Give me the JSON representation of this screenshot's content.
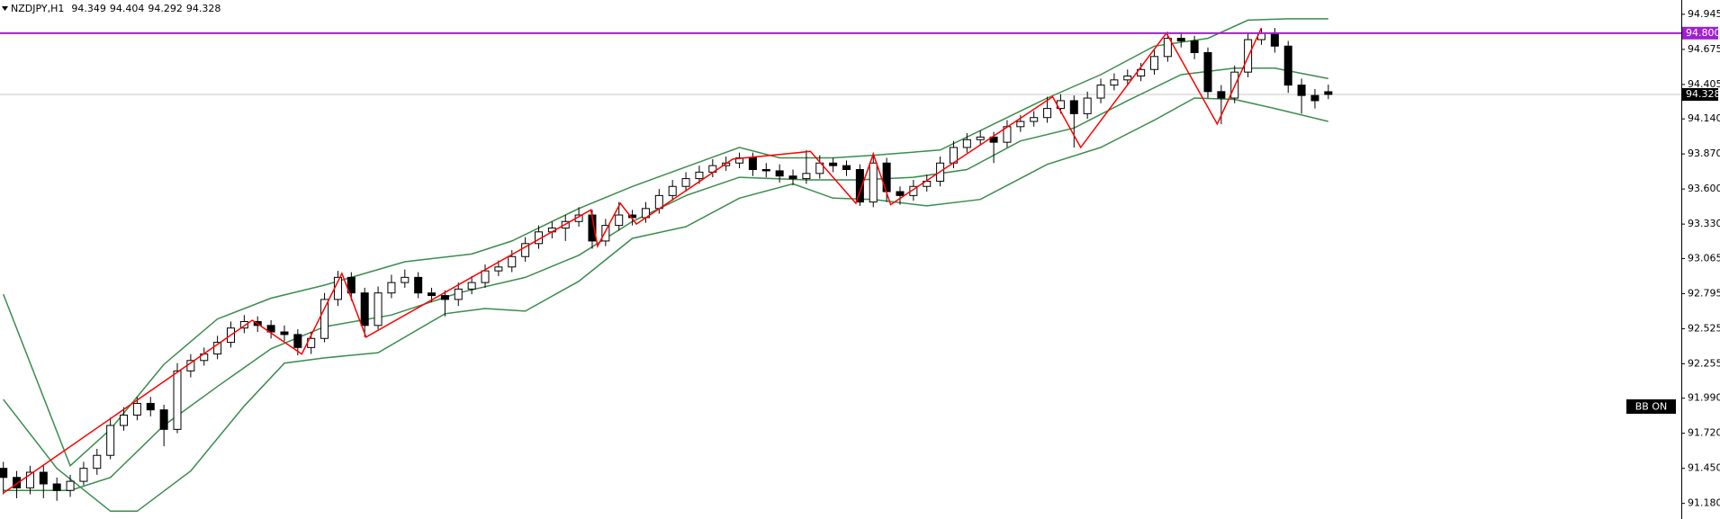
{
  "chart_data": {
    "type": "candlestick",
    "title": "NZDJPY,H1",
    "grid": false,
    "ylim": [
      91.06,
      95.055
    ],
    "yticks": [
      94.945,
      94.675,
      94.405,
      {
        "value": 94.14,
        "label": "94.140"
      },
      {
        "value": 93.87,
        "label": "93.870"
      },
      {
        "value": 93.6,
        "label": "93.600"
      },
      {
        "value": 93.33,
        "label": "93.330"
      },
      93.065,
      92.795,
      92.525,
      92.255,
      {
        "value": 91.99,
        "label": "91.990"
      },
      {
        "value": 91.72,
        "label": "91.720"
      },
      {
        "value": 91.45,
        "label": "91.450"
      },
      {
        "value": 91.18,
        "label": "91.180"
      }
    ],
    "series": [
      {
        "type": "candlestick",
        "up_color": "#ffffff",
        "down_color": "#000000",
        "open": [
          91.45,
          91.38,
          91.3,
          91.42,
          91.33,
          91.28,
          91.35,
          91.45,
          91.55,
          91.78,
          91.86,
          91.95,
          91.9,
          91.75,
          92.2,
          92.28,
          92.33,
          92.42,
          92.53,
          92.58,
          92.55,
          92.5,
          92.48,
          92.38,
          92.45,
          92.75,
          92.92,
          92.8,
          92.55,
          92.8,
          92.88,
          92.92,
          92.8,
          92.78,
          92.75,
          92.83,
          92.88,
          92.97,
          93.0,
          93.08,
          93.18,
          93.27,
          93.3,
          93.35,
          93.4,
          93.2,
          93.32,
          93.4,
          93.38,
          93.45,
          93.55,
          93.62,
          93.68,
          93.73,
          93.78,
          93.8,
          93.84,
          93.75,
          93.74,
          93.7,
          93.68,
          93.72,
          93.8,
          93.78,
          93.75,
          93.5,
          93.8,
          93.58,
          93.55,
          93.62,
          93.66,
          93.8,
          93.92,
          93.98,
          94.0,
          93.96,
          94.08,
          94.12,
          94.15,
          94.22,
          94.28,
          94.18,
          94.3,
          94.4,
          94.44,
          94.47,
          94.52,
          94.62,
          94.76,
          94.74,
          94.65,
          94.35,
          94.3,
          94.5,
          94.75,
          94.8,
          94.7,
          94.4,
          94.32,
          94.349
        ],
        "high": [
          91.5,
          91.43,
          91.47,
          91.47,
          91.38,
          91.4,
          91.5,
          91.6,
          91.84,
          91.92,
          92.0,
          92.0,
          91.94,
          92.26,
          92.33,
          92.38,
          92.47,
          92.58,
          92.63,
          92.62,
          92.59,
          92.55,
          92.52,
          92.5,
          92.8,
          92.97,
          92.96,
          92.84,
          92.85,
          92.94,
          92.98,
          92.96,
          92.84,
          92.82,
          92.88,
          92.93,
          93.02,
          93.05,
          93.13,
          93.23,
          93.32,
          93.35,
          93.4,
          93.46,
          93.44,
          93.37,
          93.5,
          93.44,
          93.5,
          93.6,
          93.67,
          93.73,
          93.78,
          93.83,
          93.85,
          93.88,
          93.88,
          93.8,
          93.79,
          93.75,
          93.9,
          93.86,
          93.84,
          93.82,
          93.79,
          93.88,
          93.84,
          93.62,
          93.67,
          93.71,
          93.85,
          93.97,
          94.03,
          94.05,
          94.04,
          94.13,
          94.17,
          94.2,
          94.31,
          94.33,
          94.32,
          94.35,
          94.45,
          94.49,
          94.52,
          94.57,
          94.67,
          94.81,
          94.8,
          94.78,
          94.69,
          94.4,
          94.55,
          94.8,
          94.84,
          94.84,
          94.74,
          94.45,
          94.37,
          94.404
        ],
        "low": [
          91.25,
          91.22,
          91.25,
          91.22,
          91.2,
          91.23,
          91.32,
          91.4,
          91.52,
          91.74,
          91.82,
          91.85,
          91.62,
          91.72,
          92.15,
          92.24,
          92.29,
          92.38,
          92.49,
          92.5,
          92.45,
          92.43,
          92.32,
          92.33,
          92.42,
          92.7,
          92.74,
          92.46,
          92.52,
          92.76,
          92.84,
          92.76,
          92.73,
          92.62,
          92.7,
          92.79,
          92.84,
          92.93,
          92.96,
          93.04,
          93.14,
          93.22,
          93.2,
          93.31,
          93.14,
          93.16,
          93.28,
          93.32,
          93.34,
          93.41,
          93.51,
          93.58,
          93.64,
          93.69,
          93.74,
          93.76,
          93.7,
          93.69,
          93.65,
          93.63,
          93.64,
          93.68,
          93.73,
          93.7,
          93.47,
          93.46,
          93.5,
          93.48,
          93.51,
          93.58,
          93.62,
          93.76,
          93.88,
          93.94,
          93.8,
          93.92,
          94.04,
          94.08,
          94.11,
          94.18,
          93.92,
          94.14,
          94.26,
          94.36,
          94.4,
          94.43,
          94.48,
          94.58,
          94.69,
          94.6,
          94.3,
          94.1,
          94.26,
          94.46,
          94.71,
          94.65,
          94.34,
          94.18,
          94.22,
          94.292
        ],
        "close": [
          91.38,
          91.3,
          91.42,
          91.33,
          91.28,
          91.35,
          91.45,
          91.55,
          91.78,
          91.86,
          91.95,
          91.9,
          91.75,
          92.2,
          92.28,
          92.33,
          92.42,
          92.53,
          92.58,
          92.55,
          92.5,
          92.48,
          92.38,
          92.45,
          92.75,
          92.92,
          92.8,
          92.55,
          92.8,
          92.88,
          92.92,
          92.8,
          92.78,
          92.75,
          92.83,
          92.88,
          92.97,
          93.0,
          93.08,
          93.18,
          93.27,
          93.3,
          93.35,
          93.4,
          93.2,
          93.32,
          93.4,
          93.38,
          93.45,
          93.55,
          93.62,
          93.68,
          93.73,
          93.78,
          93.8,
          93.84,
          93.75,
          93.74,
          93.7,
          93.68,
          93.72,
          93.8,
          93.78,
          93.75,
          93.5,
          93.8,
          93.58,
          93.55,
          93.62,
          93.66,
          93.8,
          93.92,
          93.98,
          94.0,
          93.96,
          94.08,
          94.12,
          94.15,
          94.22,
          94.28,
          94.18,
          94.3,
          94.4,
          94.44,
          94.47,
          94.52,
          94.62,
          94.76,
          94.74,
          94.65,
          94.35,
          94.3,
          94.5,
          94.75,
          94.8,
          94.7,
          94.4,
          94.32,
          94.28,
          94.328
        ]
      }
    ],
    "overlays": [
      {
        "type": "line",
        "color": "#3a8c4c",
        "x": [
          0,
          5,
          8,
          12,
          16,
          20,
          24,
          30,
          35,
          38,
          43,
          47,
          51,
          55,
          58,
          62,
          65,
          70,
          74,
          78,
          82,
          86,
          90,
          93,
          96,
          99
        ],
        "values": [
          92.79,
          91.47,
          91.75,
          92.25,
          92.6,
          92.76,
          92.86,
          93.04,
          93.1,
          93.2,
          93.45,
          93.62,
          93.77,
          93.92,
          93.84,
          93.84,
          93.86,
          93.9,
          94.1,
          94.3,
          94.48,
          94.7,
          94.76,
          94.9,
          94.91,
          94.91
        ]
      },
      {
        "type": "line",
        "color": "#3a8c4c",
        "x": [
          0,
          5,
          8,
          12,
          16,
          20,
          24,
          29,
          34,
          39,
          43,
          47,
          51,
          55,
          60,
          64,
          68,
          72,
          76,
          80,
          84,
          88,
          92,
          95,
          99
        ],
        "values": [
          91.28,
          91.28,
          91.38,
          91.78,
          92.08,
          92.37,
          92.54,
          92.63,
          92.8,
          92.92,
          93.09,
          93.35,
          93.55,
          93.69,
          93.67,
          93.67,
          93.69,
          93.75,
          93.97,
          94.07,
          94.28,
          94.48,
          94.53,
          94.53,
          94.45
        ]
      },
      {
        "type": "line",
        "color": "#3a8c4c",
        "x": [
          0,
          4,
          8,
          10,
          14,
          18,
          21,
          24,
          28,
          33,
          36,
          39,
          43,
          47,
          51,
          55,
          59,
          62,
          65,
          69,
          73,
          78,
          82,
          86,
          89,
          92,
          95,
          99
        ],
        "values": [
          91.98,
          91.45,
          91.12,
          91.12,
          91.43,
          91.93,
          92.26,
          92.3,
          92.34,
          92.64,
          92.68,
          92.66,
          92.89,
          93.22,
          93.31,
          93.53,
          93.64,
          93.53,
          93.52,
          93.47,
          93.52,
          93.79,
          93.92,
          94.13,
          94.3,
          94.29,
          94.22,
          94.12
        ]
      },
      {
        "type": "line",
        "color": "#ff0000",
        "x": [
          0,
          18.6,
          22.3,
          25.3,
          27.1,
          43.9,
          44.4,
          46.1,
          47.3,
          54.5,
          60.3,
          63.7,
          65,
          66.3,
          78.4,
          80.5,
          86.9,
          90.7,
          94
        ],
        "values": [
          91.26,
          92.59,
          92.33,
          92.95,
          92.46,
          93.44,
          93.16,
          93.49,
          93.33,
          93.83,
          93.89,
          93.49,
          93.87,
          93.48,
          94.31,
          93.92,
          94.8,
          94.1,
          94.84
        ]
      }
    ],
    "level_lines": [
      {
        "value": 94.8,
        "label": "94.800",
        "color": "#a020d0"
      }
    ],
    "price_line_color": "#c8c8c8",
    "indicator_label": "BB ON"
  }
}
